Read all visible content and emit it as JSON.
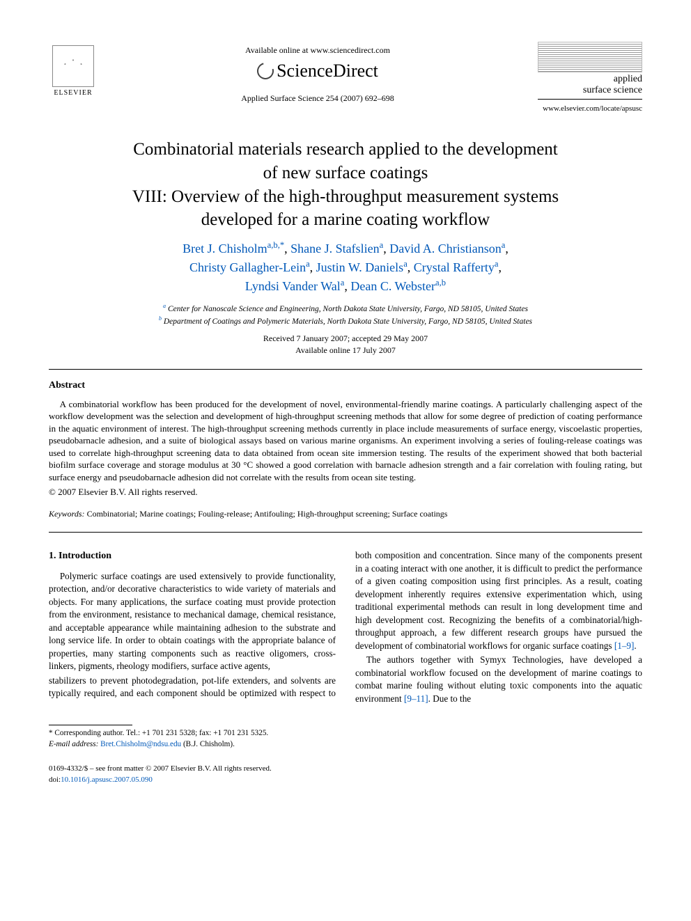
{
  "header": {
    "publisher": "ELSEVIER",
    "available_online": "Available online at www.sciencedirect.com",
    "sciencedirect": "ScienceDirect",
    "citation": "Applied Surface Science 254 (2007) 692–698",
    "journal_name_line1": "applied",
    "journal_name_line2": "surface science",
    "journal_url": "www.elsevier.com/locate/apsusc"
  },
  "title": {
    "line1": "Combinatorial materials research applied to the development",
    "line2": "of new surface coatings",
    "line3": "VIII: Overview of the high-throughput measurement systems",
    "line4": "developed for a marine coating workflow"
  },
  "authors": [
    {
      "name": "Bret J. Chisholm",
      "aff": "a,b,",
      "marker": "*"
    },
    {
      "name": "Shane J. Stafslien",
      "aff": "a",
      "marker": ""
    },
    {
      "name": "David A. Christianson",
      "aff": "a",
      "marker": ""
    },
    {
      "name": "Christy Gallagher-Lein",
      "aff": "a",
      "marker": ""
    },
    {
      "name": "Justin W. Daniels",
      "aff": "a",
      "marker": ""
    },
    {
      "name": "Crystal Rafferty",
      "aff": "a",
      "marker": ""
    },
    {
      "name": "Lyndsi Vander Wal",
      "aff": "a",
      "marker": ""
    },
    {
      "name": "Dean C. Webster",
      "aff": "a,b",
      "marker": ""
    }
  ],
  "affiliations": {
    "a": "Center for Nanoscale Science and Engineering, North Dakota State University, Fargo, ND 58105, United States",
    "b": "Department of Coatings and Polymeric Materials, North Dakota State University, Fargo, ND 58105, United States"
  },
  "dates": {
    "received": "Received 7 January 2007; accepted 29 May 2007",
    "online": "Available online 17 July 2007"
  },
  "abstract": {
    "heading": "Abstract",
    "text": "A combinatorial workflow has been produced for the development of novel, environmental-friendly marine coatings. A particularly challenging aspect of the workflow development was the selection and development of high-throughput screening methods that allow for some degree of prediction of coating performance in the aquatic environment of interest. The high-throughput screening methods currently in place include measurements of surface energy, viscoelastic properties, pseudobarnacle adhesion, and a suite of biological assays based on various marine organisms. An experiment involving a series of fouling-release coatings was used to correlate high-throughput screening data to data obtained from ocean site immersion testing. The results of the experiment showed that both bacterial biofilm surface coverage and storage modulus at 30 °C showed a good correlation with barnacle adhesion strength and a fair correlation with fouling rating, but surface energy and pseudobarnacle adhesion did not correlate with the results from ocean site testing.",
    "copyright": "© 2007 Elsevier B.V. All rights reserved."
  },
  "keywords": {
    "label": "Keywords:",
    "text": "Combinatorial; Marine coatings; Fouling-release; Antifouling; High-throughput screening; Surface coatings"
  },
  "body": {
    "section1_heading": "1. Introduction",
    "para1": "Polymeric surface coatings are used extensively to provide functionality, protection, and/or decorative characteristics to wide variety of materials and objects. For many applications, the surface coating must provide protection from the environment, resistance to mechanical damage, chemical resistance, and acceptable appearance while maintaining adhesion to the substrate and long service life. In order to obtain coatings with the appropriate balance of properties, many starting components such as reactive oligomers, cross-linkers, pigments, rheology modifiers, surface active agents,",
    "para1b": "stabilizers to prevent photodegradation, pot-life extenders, and solvents are typically required, and each component should be optimized with respect to both composition and concentration. Since many of the components present in a coating interact with one another, it is difficult to predict the performance of a given coating composition using first principles. As a result, coating development inherently requires extensive experimentation which, using traditional experimental methods can result in long development time and high development cost. Recognizing the benefits of a combinatorial/high-throughput approach, a few different research groups have pursued the development of combinatorial workflows for organic surface coatings ",
    "ref1": "[1–9]",
    "para2a": "The authors together with Symyx Technologies, have developed a combinatorial workflow focused on the development of marine coatings to combat marine fouling without eluting toxic components into the aquatic environment ",
    "ref2": "[9–11]",
    "para2b": ". Due to the"
  },
  "footnote": {
    "corr": "* Corresponding author. Tel.: +1 701 231 5328; fax: +1 701 231 5325.",
    "email_label": "E-mail address:",
    "email": "Bret.Chisholm@ndsu.edu",
    "email_who": "(B.J. Chisholm)."
  },
  "footer": {
    "line1": "0169-4332/$ – see front matter © 2007 Elsevier B.V. All rights reserved.",
    "doi_label": "doi:",
    "doi": "10.1016/j.apsusc.2007.05.090"
  },
  "colors": {
    "link": "#0058b8",
    "text": "#000000",
    "bg": "#ffffff"
  }
}
